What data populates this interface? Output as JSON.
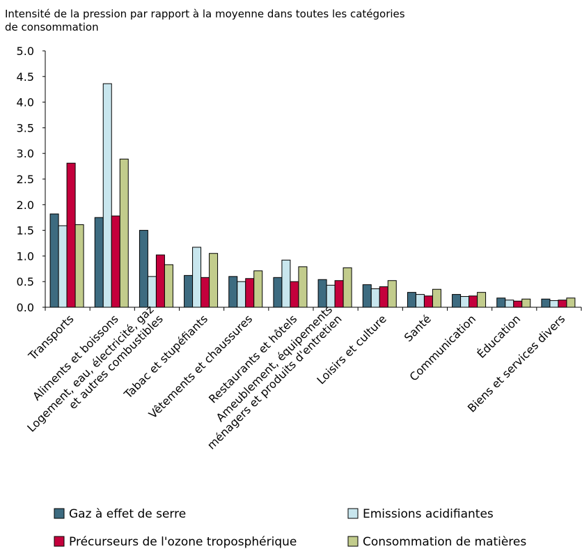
{
  "chart_data": {
    "type": "bar",
    "title_lines": [
      "Intensité de la pression par rapport à la moyenne dans toutes les catégories",
      "de consommation"
    ],
    "xlabel": "",
    "ylabel": "",
    "ylim": [
      0,
      5
    ],
    "yticks": [
      "0.0",
      "0.5",
      "1.0",
      "1.5",
      "2.0",
      "2.5",
      "3.0",
      "3.5",
      "4.0",
      "4.5",
      "5.0"
    ],
    "categories": [
      [
        "Transports"
      ],
      [
        "Aliments et boissons"
      ],
      [
        "Logement, eau, électricité, gaz",
        "et autres combustibles"
      ],
      [
        "Tabac et stupéfiants"
      ],
      [
        "Vêtements et chaussures"
      ],
      [
        "Restaurants et hôtels"
      ],
      [
        "Ameublement, équipements",
        "ménagers et produits d'entretien"
      ],
      [
        "Loisirs et culture"
      ],
      [
        "Santé"
      ],
      [
        "Communication"
      ],
      [
        "Éducation"
      ],
      [
        "Biens et services divers"
      ]
    ],
    "series": [
      {
        "name": "Gaz à effet de serre",
        "color": "#3d6b80",
        "values": [
          1.82,
          1.75,
          1.5,
          0.62,
          0.6,
          0.58,
          0.54,
          0.44,
          0.29,
          0.25,
          0.18,
          0.16
        ]
      },
      {
        "name": "Emissions acidifiantes",
        "color": "#c8e6ee",
        "values": [
          1.59,
          4.36,
          0.6,
          1.17,
          0.5,
          0.92,
          0.43,
          0.36,
          0.25,
          0.21,
          0.14,
          0.13
        ]
      },
      {
        "name": "Précurseurs de l'ozone troposphérique",
        "color": "#c4003c",
        "values": [
          2.81,
          1.78,
          1.02,
          0.58,
          0.56,
          0.5,
          0.52,
          0.4,
          0.22,
          0.22,
          0.12,
          0.14
        ]
      },
      {
        "name": "Consommation de matières",
        "color": "#c2cc8c",
        "values": [
          1.61,
          2.89,
          0.83,
          1.05,
          0.71,
          0.79,
          0.77,
          0.52,
          0.35,
          0.29,
          0.16,
          0.18
        ]
      }
    ],
    "grid": false,
    "legend_position": "bottom"
  }
}
